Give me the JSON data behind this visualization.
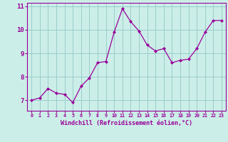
{
  "x": [
    0,
    1,
    2,
    3,
    4,
    5,
    6,
    7,
    8,
    9,
    10,
    11,
    12,
    13,
    14,
    15,
    16,
    17,
    18,
    19,
    20,
    21,
    22,
    23
  ],
  "y": [
    7.0,
    7.1,
    7.5,
    7.3,
    7.25,
    6.9,
    7.6,
    7.95,
    8.6,
    8.65,
    9.9,
    10.9,
    10.35,
    9.95,
    9.35,
    9.1,
    9.2,
    8.6,
    8.7,
    8.75,
    9.2,
    9.9,
    10.4,
    10.4
  ],
  "line_color": "#990099",
  "marker": "D",
  "marker_size": 2.0,
  "bg_color": "#cceee8",
  "grid_color": "#99cccc",
  "xlabel": "Windchill (Refroidissement éolien,°C)",
  "xlabel_color": "#990099",
  "tick_color": "#990099",
  "ylim": [
    6.55,
    11.15
  ],
  "xlim": [
    -0.5,
    23.5
  ],
  "yticks": [
    7,
    8,
    9,
    10,
    11
  ],
  "xticks": [
    0,
    1,
    2,
    3,
    4,
    5,
    6,
    7,
    8,
    9,
    10,
    11,
    12,
    13,
    14,
    15,
    16,
    17,
    18,
    19,
    20,
    21,
    22,
    23
  ]
}
